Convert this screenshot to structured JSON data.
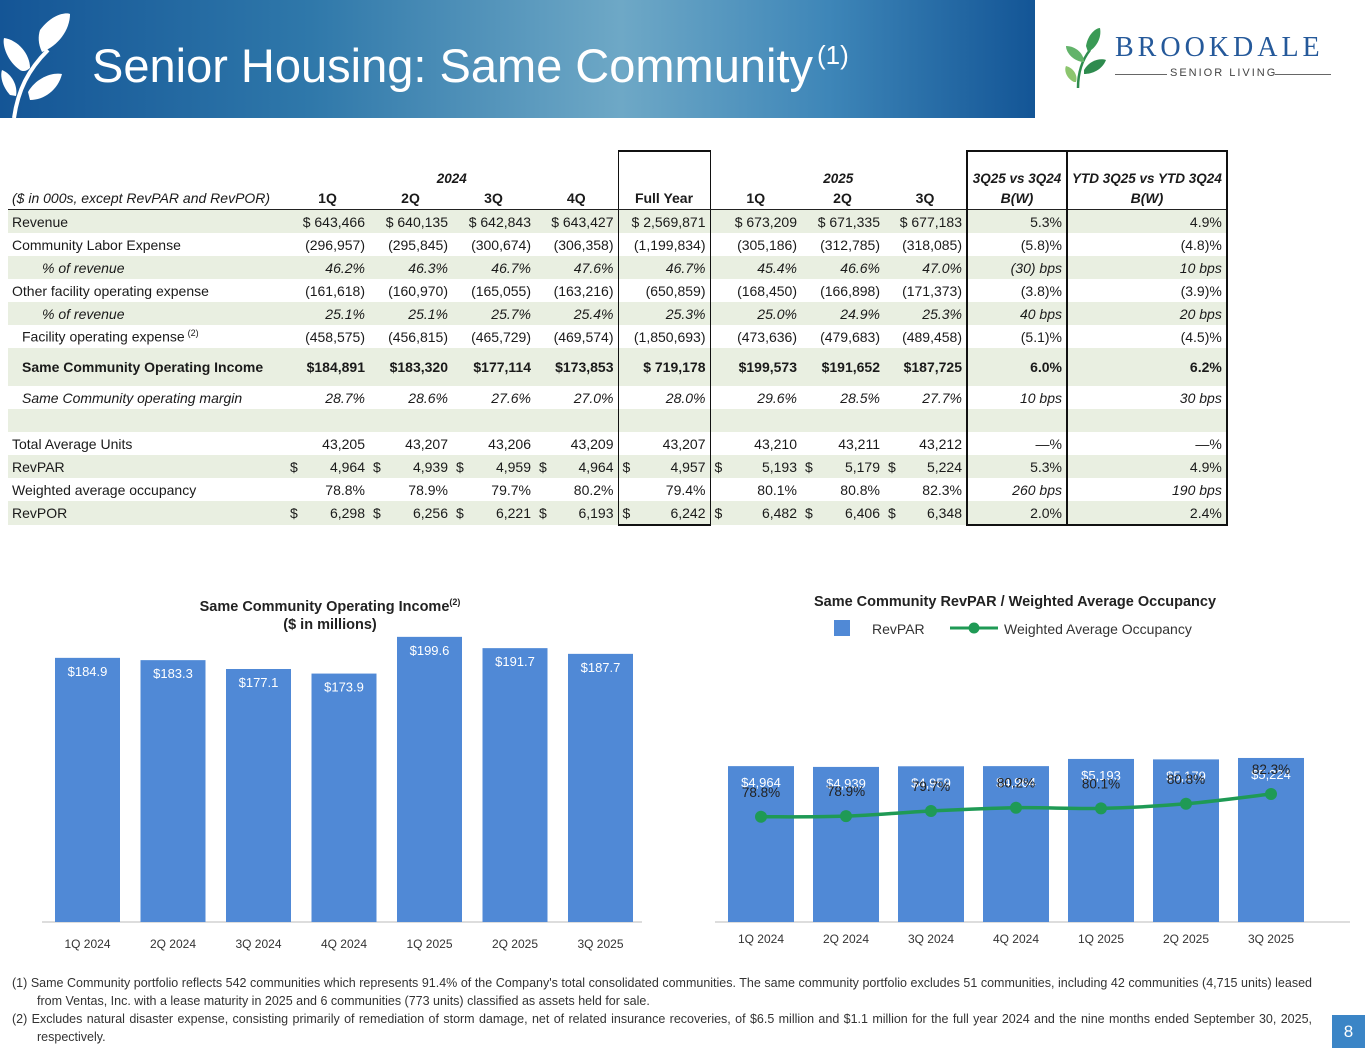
{
  "header": {
    "title": "Senior Housing: Same Community",
    "title_footnote": "(1)",
    "logo_name": "BROOKDALE",
    "logo_sub": "SENIOR LIVING"
  },
  "table": {
    "year_groups": {
      "y2024": "2024",
      "y2025": "2025",
      "c3q": "3Q25 vs 3Q24",
      "cytd": "YTD 3Q25 vs YTD 3Q24"
    },
    "columns": [
      "($ in 000s, except RevPAR and RevPOR)",
      "1Q",
      "2Q",
      "3Q",
      "4Q",
      "Full Year",
      "1Q",
      "2Q",
      "3Q",
      "B(W)",
      "B(W)"
    ],
    "rows": [
      {
        "label": "Revenue",
        "cells": [
          "$ 643,466",
          "$ 640,135",
          "$ 642,843",
          "$ 643,427",
          "$ 2,569,871",
          "$ 673,209",
          "$ 671,335",
          "$ 677,183",
          "5.3%",
          "4.9%"
        ]
      },
      {
        "label": "Community Labor Expense",
        "cells": [
          "(296,957)",
          "(295,845)",
          "(300,674)",
          "(306,358)",
          "(1,199,834)",
          "(305,186)",
          "(312,785)",
          "(318,085)",
          "(5.8)%",
          "(4.8)%"
        ]
      },
      {
        "label": "% of revenue",
        "cells": [
          "46.2%",
          "46.3%",
          "46.7%",
          "47.6%",
          "46.7%",
          "45.4%",
          "46.6%",
          "47.0%",
          "(30) bps",
          "10 bps"
        ]
      },
      {
        "label": "Other facility operating expense",
        "cells": [
          "(161,618)",
          "(160,970)",
          "(165,055)",
          "(163,216)",
          "(650,859)",
          "(168,450)",
          "(166,898)",
          "(171,373)",
          "(3.8)%",
          "(3.9)%"
        ]
      },
      {
        "label": "% of revenue",
        "cells": [
          "25.1%",
          "25.1%",
          "25.7%",
          "25.4%",
          "25.3%",
          "25.0%",
          "24.9%",
          "25.3%",
          "40 bps",
          "20 bps"
        ]
      },
      {
        "label": "Facility operating expense",
        "label_note": "(2)",
        "cells": [
          "(458,575)",
          "(456,815)",
          "(465,729)",
          "(469,574)",
          "(1,850,693)",
          "(473,636)",
          "(479,683)",
          "(489,458)",
          "(5.1)%",
          "(4.5)%"
        ]
      },
      {
        "label": "Same Community Operating Income",
        "cells": [
          "$184,891",
          "$183,320",
          "$177,114",
          "$173,853",
          "$ 719,178",
          "$199,573",
          "$191,652",
          "$187,725",
          "6.0%",
          "6.2%"
        ]
      },
      {
        "label": "Same Community operating margin",
        "cells": [
          "28.7%",
          "28.6%",
          "27.6%",
          "27.0%",
          "28.0%",
          "29.6%",
          "28.5%",
          "27.7%",
          "10 bps",
          "30 bps"
        ]
      },
      {
        "label": "",
        "cells": [
          "",
          "",
          "",
          "",
          "",
          "",
          "",
          "",
          "",
          ""
        ]
      },
      {
        "label": "Total Average Units",
        "cells": [
          "43,205",
          "43,207",
          "43,206",
          "43,209",
          "43,207",
          "43,210",
          "43,211",
          "43,212",
          "—%",
          "—%"
        ]
      },
      {
        "label": "RevPAR",
        "cells": [
          "4,964",
          "4,939",
          "4,959",
          "4,964",
          "4,957",
          "5,193",
          "5,179",
          "5,224",
          "5.3%",
          "4.9%"
        ]
      },
      {
        "label": "Weighted average occupancy",
        "cells": [
          "78.8%",
          "78.9%",
          "79.7%",
          "80.2%",
          "79.4%",
          "80.1%",
          "80.8%",
          "82.3%",
          "260 bps",
          "190 bps"
        ]
      },
      {
        "label": "RevPOR",
        "cells": [
          "6,298",
          "6,256",
          "6,221",
          "6,193",
          "6,242",
          "6,482",
          "6,406",
          "6,348",
          "2.0%",
          "2.4%"
        ]
      }
    ],
    "currency_symbol": "$"
  },
  "chart_data": [
    {
      "type": "bar",
      "title": "Same Community Operating  Income",
      "title_note": "(2)",
      "subtitle": "($ in millions)",
      "categories": [
        "1Q 2024",
        "2Q 2024",
        "3Q 2024",
        "4Q 2024",
        "1Q 2025",
        "2Q 2025",
        "3Q 2025"
      ],
      "values": [
        184.9,
        183.3,
        177.1,
        173.9,
        199.6,
        191.7,
        187.7
      ],
      "value_labels": [
        "$184.9",
        "$183.3",
        "$177.1",
        "$173.9",
        "$199.6",
        "$191.7",
        "$187.7"
      ],
      "ylim": [
        0,
        210
      ],
      "bar_color": "#5089d6",
      "grid": false
    },
    {
      "type": "bar+line",
      "title": "Same Community RevPAR / Weighted Average Occupancy",
      "legend_position": "top",
      "categories": [
        "1Q 2024",
        "2Q 2024",
        "3Q 2024",
        "4Q 2024",
        "1Q 2025",
        "2Q 2025",
        "3Q 2025"
      ],
      "series": [
        {
          "name": "RevPAR",
          "type": "bar",
          "values": [
            4964,
            4939,
            4959,
            4964,
            5193,
            5179,
            5224
          ],
          "value_labels": [
            "$4,964",
            "$4,939",
            "$4,959",
            "$4,964",
            "$5,193",
            "$5,179",
            "$5,224"
          ],
          "color": "#5089d6"
        },
        {
          "name": "Weighted Average Occupancy",
          "type": "line",
          "values": [
            78.8,
            78.9,
            79.7,
            80.2,
            80.1,
            80.8,
            82.3
          ],
          "value_labels": [
            "78.8%",
            "78.9%",
            "79.7%",
            "80.2%",
            "80.1%",
            "80.8%",
            "82.3%"
          ],
          "color": "#1f9a55"
        }
      ],
      "bar_ylim": [
        0,
        5500
      ],
      "line_ylim": [
        70,
        84
      ],
      "grid": false
    }
  ],
  "footnotes": [
    "(1) Same Community portfolio reflects 542 communities which represents 91.4% of the Company's total consolidated communities. The same community portfolio excludes 51 communities, including 42 communities (4,715 units) leased from Ventas, Inc. with a lease maturity in 2025 and 6 communities (773 units) classified as assets held for sale.",
    "(2) Excludes natural disaster expense, consisting primarily of remediation of storm damage, net of related insurance recoveries, of $6.5 million and $1.1 million for the full year 2024 and the nine months ended September 30, 2025, respectively."
  ],
  "page_number": "8"
}
